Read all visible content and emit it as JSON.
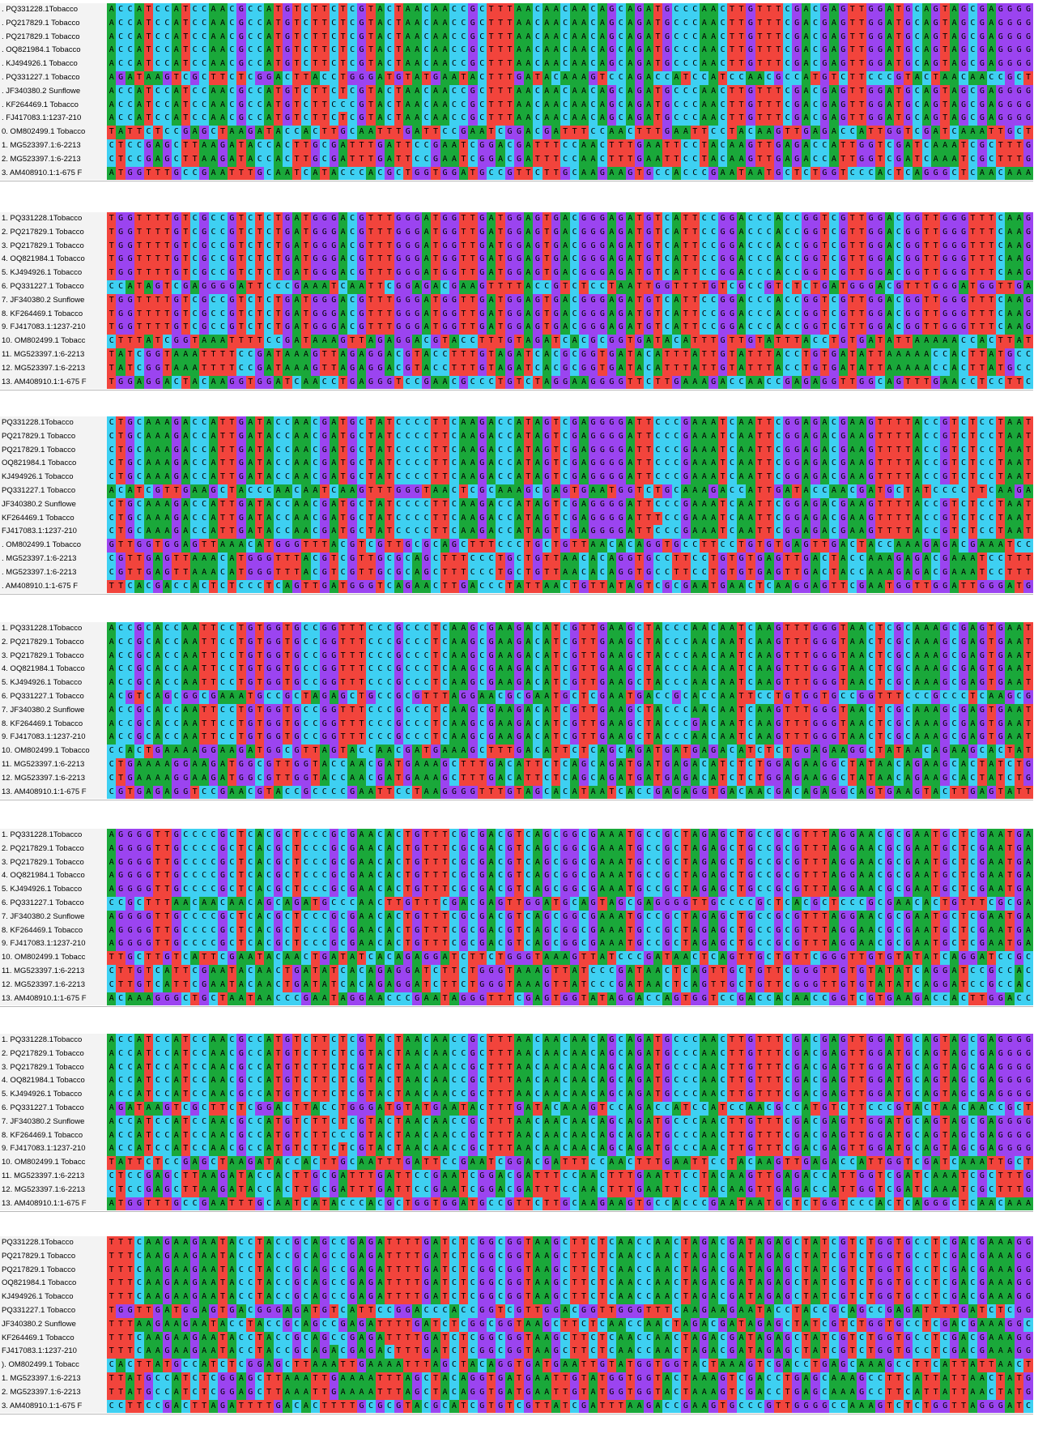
{
  "nucleotide_colors": {
    "A": "#1aa83a",
    "C": "#3ed0f2",
    "G": "#9b44f0",
    "T": "#f2443c"
  },
  "blocks": [
    {
      "labels": [
        ". PQ331228.1Tobacco",
        ". PQ217829.1 Tobacco",
        ". PQ217829.1 Tobacco",
        ". OQ821984.1 Tobacco",
        ". KJ494926.1 Tobacco",
        ". PQ331227.1 Tobacco",
        ". JF340380.2 Sunflowe",
        ". KF264469.1 Tobacco",
        ". FJ417083.1:1237-210",
        "0. OM802499.1 Tobacco",
        "1. MG523397.1:6-2213",
        "2. MG523397.1:6-2213",
        "3. AM408910.1:1-675 F"
      ],
      "sequences": [
        "ACCATCCATCCAACGCCATGTCTTCTCGTACTAACAACCGCTTTAACAACAACAGCAGATGCCCAACTTGTTTCGACGAGTTGGATGCAGTAGCGAGGGGTTG",
        "ACCATCCATCCAACGCCATGTCTTCTCGTACTAACAACCGCTTTAACAACAACAGCAGATGCCCAACTTGTTTCGACGAGTTGGATGCAGTAGCGAGGGGTTG",
        "ACCATCCATCCAACGCCATGTCTTCTCGTACTAACAACCGCTTTAACAACAACAGCAGATGCCCAACTTGTTTCGACGAGTTGGATGCAGTAGCGAGGGGTTG",
        "ACCATCCATCCAACGCCATGTCTTCTCGTACTAACAACCGCTTTAACAACAACAGCAGATGCCCAACTTGTTTCGACGAGTTGGATGCAGTAGCGAGGGGTTG",
        "ACCATCCATCCAACGCCATGTCTTCTCGTACTAACAACCGCTTTAACAACAACAGCAGATGCCCAACTTGTTTCGACGAGTTGGATGCAGTAGCGAGGGGTTG",
        "AGATAAGTCGCTTCTCGGACTTACCTGGGATGTATGAATACTTTGATACAAAGTCCAGACCATCCATCCAACGCCATGTCTTCCCGTACTAACAACCGCTTTA",
        "ACCATCCATCCAACGCCATGTCTTCTCGTACTAACAACCGCTTTAACAACAACAGCAGATGCCCAACTTGTTTCGACGAGTTGGATGCAGTAGCGAGGGGTTG",
        "ACCATCCATCCAACGCCATGTCTTCCCGTACTAACAACCGCTTTAACAACAACAGCAGATGCCCAACTTGTTTCGACGAGTTGGATGCAGTAGCGAGGGGTTG",
        "ACCATCCATCCAACGCCATGTCTTCTCGTACTAACAACCGCTTTAACAACAACAGCAGATGCCCAACTTGTTTCGACGAGTTGGATGCAGTAGCGAGGGGTTG",
        "TATTCTCCGAGCTAAGATACCACTTGCAATTTGATTCCGAATCGGACGATTTCCAACTTTGAATTCCTACAAGTTGAGACCATTGGTCGATCAAATTGCTTGT",
        "CTCCGAGCTTAAGATACCACTTGCGATTTGATTCCGAATCGGACGATTTCCAACTTTGAATTCCTACAAGTTGAGACCATTGGTCGATCAAATCGCTTTGTCAT",
        "CTCCGAGCTTAAGATACCACTTGCGATTTGATTCCGAATCGGACGATTTCCAACTTTGAATTCCTACAAGTTGAGACCATTGGTCGATCAAATCGCTTTGTCAT",
        "ATGGTTTGCCGAATTTGCAATCATACCCACGCTGGTGGATGCCGTTCTTGCAAGAAGTGCCACCCGAATAATGCTCTGGTCCCACTCAGGGCTCAACAAAGGG"
      ]
    },
    {
      "labels": [
        "1. PQ331228.1Tobacco",
        "2. PQ217829.1 Tobacco",
        "3. PQ217829.1 Tobacco",
        "4. OQ821984.1 Tobacco",
        "5. KJ494926.1 Tobacco",
        "6. PQ331227.1 Tobacco",
        "7. JF340380.2 Sunflowe",
        "8. KF264469.1 Tobacco",
        "9. FJ417083.1:1237-210",
        "10. OM802499.1 Tobacc",
        "11. MG523397.1:6-2213",
        "12. MG523397.1:6-2213",
        "13. AM408910.1:1-675 F"
      ],
      "sequences": [
        "TGGTTTTGTCGCCGTCTCTGATGGGACGTTTGGGATGGTTGATGGAGTGACGGGAGATGTCATTCCGGACCCACCGGTCGTTGGACGGTTGGGTTTCAAGAAG",
        "TGGTTTTGTCGCCGTCTCTGATGGGACGTTTGGGATGGTTGATGGAGTGACGGGAGATGTCATTCCGGACCCACCGGTCGTTGGACGGTTGGGTTTCAAGAAG",
        "TGGTTTTGTCGCCGTCTCTGATGGGACGTTTGGGATGGTTGATGGAGTGACGGGAGATGTCATTCCGGACCCACCGGTCGTTGGACGGTTGGGTTTCAAGAAG",
        "TGGTTTTGTCGCCGTCTCTGATGGGACGTTTGGGATGGTTGATGGAGTGACGGGAGATGTCATTCCGGACCCACCGGTCGTTGGACGGTTGGGTTTCAAGAAG",
        "TGGTTTTGTCGCCGTCTCTGATGGGACGTTTGGGATGGTTGATGGAGTGACGGGAGATGTCATTCCGGACCCACCGGTCGTTGGACGGTTGGGTTTCAAGAAG",
        "CCATAGTCGAGGGGATTCCCGAAATCAATTCGGAGACGAAGTTTTACCGTCTCCTAATTGGTTTTGTCGCCGTCTCTGATGGGACGTTTGGGATGGTTGATGG",
        "TGGTTTTGTCGCCGTCTCTGATGGGACGTTTGGGATGGTTGATGGAGTGACGGGAGATGTCATTCCGGACCCACCGGTCGTTGGACGGTTGGGTTTCAAGAAG",
        "TGGTTTTGTCGCCGTCTCTGATGGGACGTTTGGGATGGTTGATGGAGTGACGGGAGATGTCATTCCGGACCCACCGGTCGTTGGACGGTTGGGTTTCAAGAAG",
        "TGGTTTTGTCGCCGTCTCTGATGGGACGTTTGGGATGGTTGATGGAGTGACGGGAGATGTCATTCCGGACCCACCGGTCGTTGGACGGTTGGGTTTCAAGAAG",
        "CTTTATCGGTAAATTTTCCGATAAAGTTAGAGGACGTACCTTTGTAGATCACGCGGTGATACATTTGTTGTATTTACCTGTGATATTAAAAACCACTTATGCATC",
        "TATCGGTAAATTTTCCGATAAAGTTAGAGGACGTACCTTTGTAGATCACGCGGTGATACATTTATTGTATTTACCTGTGATATTAAAAACCACTTATGCCATC",
        "TATCGGTAAATTTTCCGATAAAGTTAGAGGACGTACCTTTGTAGATCACGCGGTGATACATTTATTGTATTTACCTGTGATATTAAAAACCACTTATGCCATC",
        "TGGAGGACTACAAGGTGGATCAACCTGAGGGTCCGAACGCCCTGTCTAGGAAGGGGTTCTTGAAAGACCAACCGAGAGGTTGGCAGTTTGAACCTCCTTCCGA"
      ]
    },
    {
      "labels": [
        "PQ331228.1Tobacco",
        "PQ217829.1 Tobacco",
        "PQ217829.1 Tobacco",
        "OQ821984.1 Tobacco",
        "KJ494926.1 Tobacco",
        "PQ331227.1 Tobacco",
        "JF340380.2 Sunflowe",
        "KF264469.1 Tobacco",
        "FJ417083.1:1237-210",
        ". OM802499.1 Tobacco",
        ". MG523397.1:6-2213",
        ". MG523397.1:6-2213",
        ". AM408910.1:1-675 F"
      ],
      "sequences": [
        "CTGCAAAGACCATTGATACCAACGATGCTATCCCCTTCAAGACCATAGTCGAGGGGATTCCCGAAATCAATTCGGAGACGAAGTTTTACCGTCTCCTAATTGG",
        "CTGCAAAGACCATTGATACCAACGATGCTATCCCCTTCAAGACCATAGTCGAGGGGATTCCCGAAATCAATTCGGAGACGAAGTTTTACCGTCTCCTAATTGG",
        "CTGCAAAGACCATTGATACCAACGATGCTATCCCCTTCAAGACCATAGTCGAGGGGATTCCCGAAATCAATTCGGAGACGAAGTTTTACCGTCTCCTAATTGG",
        "CTGCAAAGACCATTGATACCAACGATGCTATCCCCTTCAAGACCATAGTCGAGGGGATTCCCGAAATCAATTCGGAGACGAAGTTTTACCGTCTCCTAATTGG",
        "CTGCAAAGACCATTGATACCAACGATGCTATCCCCTTCAAGACCATAGTCGAGGGGATTCCCGAAATCAATTCGGAGACGAAGTTTTACCGTCTCCTAATTGG",
        "ACATCGTTGAAGCTACCCAACAATCAAGTTTGGGTAACTCGCAAAGCGAGTGAATGGTCTGCAAAGACCATTGATACCAACGATGCTATCCCCTTCAAGACCA",
        "CTGCAAAGACCATTGATACCAACGATGCTATCCCCTTCAAGACCATAGTCGAGGGGATTCCCGAAATCAATTCGGAGACGAAGTTTTACCGTCTCCTAATTGG",
        "CTGCAAAGACCATTGATACCAACGATGCTATCCCCTTCAAGACCATAGTCGAGGGGATTTCCGAAATCAATTCGGAGACGAAGTTTTACCGTCTCCTAATTGG",
        "CTGCAAAGACCATTGATACCAACGATGCTATCCCCTTCAAGACCATAGTCGAGGGGATTCCCGAAATCAATTCGGAGACGAAGTTTTACCGTCTCCTAATTGG",
        "GTTGGTGGAGTTAAACATGGGTTTACGTCGTTGCGCAGCTTTCCCTGCTGTTAACACAGGTGCCTTCCTGTGTGAGTTGACTACCAAAGAGACGAAATCCTT",
        "CGTTGAGTTAAACATGGGTTTACGTCGTTGCGCAGCTTTCCCTGCTGTTAACACAGGTGCCTTCCTGTGTGAGTTGACTACCAAAGAGACGAAATCCTTTAT",
        "CGTTGAGTTAAACATGGGTTTACGTCGTTGCGCAGCTTTCCCTGCTGTTAACACAGGTGCCTTCCTGTGTGAGTTGACTACCAAAGAGACGAAATCCTTTAT",
        "TTCACGACCACTCTCCCTCAGTTGATGGGTCAGAACTTGACCCTATTAACTGTTATAGTCGCGAATGAACTCAAGGAGTTCGAATGGTTGGATTGGGATGGTGG"
      ]
    },
    {
      "labels": [
        "1. PQ331228.1Tobacco",
        "2. PQ217829.1 Tobacco",
        "3. PQ217829.1 Tobacco",
        "4. OQ821984.1 Tobacco",
        "5. KJ494926.1 Tobacco",
        "6. PQ331227.1 Tobacco",
        "7. JF340380.2 Sunflowe",
        "8. KF264469.1 Tobacco",
        "9. FJ417083.1:1237-210",
        "10. OM802499.1 Tobacco",
        "11. MG523397.1:6-2213",
        "12. MG523397.1:6-2213",
        "13. AM408910.1:1-675 F"
      ],
      "sequences": [
        "ACCGCACCAATTCCTGTGGTGCCGGTTTCCCGCCCTCAAGCGAAGACATCGTTGAAGCTACCCAACAATCAAGTTTGGGTAACTCGCAAAGCGAGTGAATGGT",
        "ACCGCACCAATTCCTGTGGTGCCGGTTTCCCGCCCTCAAGCGAAGACATCGTTGAAGCTACCCAACAATCAAGTTTGGGTAACTCGCAAAGCGAGTGAATGGT",
        "ACCGCACCAATTCCTGTGGTGCCGGTTTCCCGCCCTCAAGCGAAGACATCGTTGAAGCTACCCAACAATCAAGTTTGGGTAACTCGCAAAGCGAGTGAATGGT",
        "ACCGCACCAATTCCTGTGGTGCCGGTTTCCCGCCCTCAAGCGAAGACATCGTTGAAGCTACCCAACAATCAAGTTTGGGTAACTCGCAAAGCGAGTGAATGGT",
        "ACCGCACCAATTCCTGTGGTGCCGGTTTCCCGCCCTCAAGCGAAGACATCGTTGAAGCTACCCAACAATCAAGTTTGGGTAACTCGCAAAGCGAGTGAATGGT",
        "ACGTCAGCGGCGAAATGCCGCTAGAGCTGCCGCGTTTAGGAACGCGAATGCTCGAATGACCGCACCAATTCCTGTGGTGCCGGTTTCCCGCCCTCAAGCGAAG",
        "ACCGCACCAATTCCTGTGGTGCCGGTTTCCCGCCCTCAAGCGAAGACATCGTTGAAGCTACCCAACAATCAAGTTTGGGTAACTCGCAAAGCGAGTGAATGGT",
        "ACCGCACCAATTCCTGTGGTGCCGGTTTCCCGCCCTCAAGCGAAGACATCGTTGAAGCTACCCGACAATCAAGTTTGGGTAACTCGCAAAGCGAGTGAATGGT",
        "ACCGCACCAATTCCTGTGGTGCCGGTTTCCCGCCCTCAAGCGAAGACATCGTTGAAGCTACCCAACAATCAAGTTTGGGTAACTCGCAAAGCGAGTGAATGGT",
        "CCACTGAAAAGGAAGATGGCGTTAGTACCAACGATGAAAGCTTTGACATTCTCAGCAGATGATGAGACATCTCTGGAGAAGGCTATAACAGAAGCACTATCTG",
        "CTGAAAAGGAAGATGGCGTTGGTACCAACGATGAAAGCTTTGACATTCTCAGCAGATGATGAGACATCTCTGGAGAAGGCTATAACAGAAGCACTATCTGGTT",
        "CTGAAAAGGAAGATGGCGTTGGTACCAACGATGAAAGCTTTGACATTCTCAGCAGATGATGAGACATCTCTGGAGAAGGCTATAACAGAAGCACTATCTGGTT",
        "CGTGAGAGGTCCGAACGTACCGCCCCGAATTCCTAAGGGGTTTGTAGCACATAATCACCGAGAGGTGACAACGACAGAGGCAGTGAAGTACTTGAGTATTGAC"
      ]
    },
    {
      "labels": [
        "1. PQ331228.1Tobacco",
        "2. PQ217829.1 Tobacco",
        "3. PQ217829.1 Tobacco",
        "4. OQ821984.1 Tobacco",
        "5. KJ494926.1 Tobacco",
        "6. PQ331227.1 Tobacco",
        "7. JF340380.2 Sunflowe",
        "8. KF264469.1 Tobacco",
        "9. FJ417083.1:1237-210",
        "10. OM802499.1 Tobacc",
        "11. MG523397.1:6-2213",
        "12. MG523397.1:6-2213",
        "13. AM408910.1:1-675 F"
      ],
      "sequences": [
        "AGGGGTTGCCCCGCTCACGCTCCCGCGAACACTGTTTCGCGACGTCAGCGGCGAAATGCCGCTAGAGCTGCCGCGTTTAGGAACGCGAATGCTCGAATGACCG",
        "AGGGGTTGCCCCGCTCACGCTCCCGCGAACACTGTTTCGCGACGTCAGCGGCGAAATGCCGCTAGAGCTGCCGCGTTTAGGAACGCGAATGCTCGAATGACCG",
        "AGGGGTTGCCCCGCTCACGCTCCCGCGAACACTGTTTCGCGACGTCAGCGGCGAAATGCCGCTAGAGCTGCCGCGTTTAGGAACGCGAATGCTCGAATGACCG",
        "AGGGGTTGCCCCGCTCACGCTCCCGCGAACACTGTTTCGCGACGTCAGCGGCGAAATGCCGCTAGAGCTGCCGCGTTTAGGAACGCGAATGCTCGAATGACCG",
        "AGGGGTTGCCCCGCTCACGCTCCCGCGAACACTGTTTCGCGACGTCAGCGGCGAAATGCCGCTAGAGCTGCCGCGTTTAGGAACGCGAATGCTCGAATGACCG",
        "CCGCTTTAACAACAACAGCAGATGCCCAACTTGTTTCGACGAGTTGGATGCAGTAGCGAGGGGTTGCCCCGCTCACGCTCCCGCGAACACTGTTTCGCGACGT",
        "AGGGGTTGCCCCGCTCACGCTCCCGCGAACACTGTTTCGCGACGTCAGCGGCGAAATGCCGCTAGAGCTGCCGCGTTTAGGAACGCGAATGCTCGAATGACCG",
        "AGGGGTTGCCCCGCTCACGCTCCCGCGAACACTGTTTCGCGACGTCAGCGGCGAAATGCCGCTAGAGCTGCCGCGTTTAGGAACGCGAATGCTCGAATGACCG",
        "AGGGGTTGCCCCGCTCACGCTCCCGCGAACACTGTTTCGCGACGTCAGCGGCGAAATGCCGCTAGAGCTGCCGCGTTTAGGAACGCGAATGCTCGAATGACCG",
        "TTGCTTGTCATTCGAATACAACTGATATCACAGAGGATCTTCTGGGTAAAGTTATCCCGATAACTCAGTTGCTGTTCGGGTTGTGTATATCAGGATCCGCCAC",
        "CTTGTCATTCGAATACAACTGATATCACAGAGGATCTTCTGGGTAAAGTTATCCCGATAACTCAGTTGCTGTTCGGGTTGTGTATATCAGGATCCGCCACTTG",
        "CTTGTCATTCGAATACAACTGATATCACAGAGGATCTTCTGGGTAAAGTTATCCCGATAACTCAGTTGCTGTTCGGGTTGTGTATATCAGGATCCGCCACTTG",
        "ACAAAGGGCTGCTAATAACCCGAATAGGAACCCGAATAGGGTTTCGAGTGGTATAGGACCAGTGGTCCGACCACAACCGGTCGTGAAGACCACTTGGACCGTG"
      ]
    },
    {
      "labels": [
        "1. PQ331228.1Tobacco",
        "2. PQ217829.1 Tobacco",
        "3. PQ217829.1 Tobacco",
        "4. OQ821984.1 Tobacco",
        "5. KJ494926.1 Tobacco",
        "6. PQ331227.1 Tobacco",
        "7. JF340380.2 Sunflowe",
        "8. KF264469.1 Tobacco",
        "9. FJ417083.1:1237-210",
        "10. OM802499.1 Tobacc",
        "11. MG523397.1:6-2213",
        "12. MG523397.1:6-2213",
        "13. AM408910.1:1-675 F"
      ],
      "sequences": [
        "ACCATCCATCCAACGCCATGTCTTCTCGTACTAACAACCGCTTTAACAACAACAGCAGATGCCCAACTTGTTTCGACGAGTTGGATGCAGTAGCGAGGGGTTG",
        "ACCATCCATCCAACGCCATGTCTTCTCGTACTAACAACCGCTTTAACAACAACAGCAGATGCCCAACTTGTTTCGACGAGTTGGATGCAGTAGCGAGGGGTTG",
        "ACCATCCATCCAACGCCATGTCTTCTCGTACTAACAACCGCTTTAACAACAACAGCAGATGCCCAACTTGTTTCGACGAGTTGGATGCAGTAGCGAGGGGTTG",
        "ACCATCCATCCAACGCCATGTCTTCTCGTACTAACAACCGCTTTAACAACAACAGCAGATGCCCAACTTGTTTCGACGAGTTGGATGCAGTAGCGAGGGGTTG",
        "ACCATCCATCCAACGCCATGTCTTCTCGTACTAACAACCGCTTTAACAACAACAGCAGATGCCCAACTTGTTTCGACGAGTTGGATGCAGTAGCGAGGGGTTG",
        "AGATAAGTCGCTTCTCGGACTTACCTGGGATGTATGAATACTTTGATACAAAGTCCAGACCATCCATCCAACGCCATGTCTTCCCGTACTAACAACCGCTTTA",
        "ACCATCCATCCAACGCCATGTCTTCTCGTACTAACAACCGCTTTAACAACAACAGCAGATGCCCAACTTGTTTCGACGAGTTGGATGCAGTAGCGAGGGGTTG",
        "ACCATCCATCCAACGCCATGTCTTCCCGTACTAACAACCGCTTTAACAACAACAGCAGATGCCCAACTTGTTTCGACGAGTTGGATGCAGTAGCGAGGGGTTG",
        "ACCATCCATCCAACGCCATGTCTTCTCGTACTAACAACCGCTTTAACAACAACAGCAGATGCCCAACTTGTTTCGACGAGTTGGATGCAGTAGCGAGGGGTTG",
        "TATTCTCCGAGCTAAGATACCACTTGCAATTTGATTCCGAATCGGACGATTTCCAACTTTGAATTCCTACAAGTTGAGACCATTGGTCGATCAAATTGCTTGT",
        "CTCCGAGCTTAAGATACCACTTGCGATTTGATTCCGAATCGGACGATTTCCAACTTTGAATTCCTACAAGTTGAGACCATTGGTCGATCAAATCGCTTTGTCAT",
        "CTCCGAGCTTAAGATACCACTTGCGATTTGATTCCGAATCGGACGATTTCCAACTTTGAATTCCTACAAGTTGAGACCATTGGTCGATCAAATCGCTTTGTCAT",
        "ATGGTTTGCCGAATTTGCAATCATACCCACGCTGGTGGATGCCGTTCTTGCAAGAAGTGCCACCCGAATAATGCTCTGGTCCCACTCAGGGCTCAACAAAGGG"
      ]
    },
    {
      "labels": [
        "PQ331228.1Tobacco",
        "PQ217829.1 Tobacco",
        "PQ217829.1 Tobacco",
        "OQ821984.1 Tobacco",
        "KJ494926.1 Tobacco",
        "PQ331227.1 Tobacco",
        "JF340380.2 Sunflowe",
        "KF264469.1 Tobacco",
        "FJ417083.1:1237-210",
        "). OM802499.1 Tobacc",
        "1. MG523397.1:6-2213",
        "2. MG523397.1:6-2213",
        "3. AM408910.1:1-675 F"
      ],
      "sequences": [
        "TTTCAAGAAGAATACCTACCGCAGCCGAGATTTTGATCTCGGCGGTAAGCTTCTCAACCAACTAGACGATAGAGCTATCGTCTGGTGCCTCGACGAAAGGCGT",
        "TTTCAAGAAGAATACCTACCGCAGCCGAGATTTTGATCTCGGCGGTAAGCTTCTCAACCAACTAGACGATAGAGCTATCGTCTGGTGCCTCGACGAAAGGCGT",
        "TTTCAAGAAGAATACCTACCGCAGCCGAGATTTTGATCTCGGCGGTAAGCTTCTCAACCAACTAGACGATAGAGCTATCGTCTGGTGCCTCGACGAAAGGCGT",
        "TTTCAAGAAGAATACCTACCGCAGCCGAGATTTTGATCTCGGCGGTAAGCTTCTCAACCAACTAGACGATAGAGCTATCGTCTGGTGCCTCGACGAAAGGCGT",
        "TTTCAAGAAGAATACCTACCGCAGCCGAGATTTTGATCTCGGCGGTAAGCTTCTCAACCAACTAGACGATAGAGCTATCGTCTGGTGCCTCGACGAAAGGCGT",
        "TGGTTGATGGAGTGACGGGAGATGTCATTCCGGACCCACCGGTCGTTGGACGGTTGGGTTTCAAGAAGAATACCTACCGCAGCCGAGATTTTGATCTCGGCGG",
        "TTTAAGAAGAATACCTACCGCAGCCGAGATTTTGATCTCGGCGGTAAGCTTCTCAACCAACTAGACGATAGAGCTATCGTCTGGTGCCTCGACGAAAGGCGTT",
        "TTTCAAGAAGAATACCTACCGCAGCCGAGATTTTGATCTCGGCGGTAAGCTTCTCAACCAACTAGACGATAGAGCTATCGTCTGGTGCCTCGACGAAAGGCGT",
        "TTTCAAGAAGAATACCTACCGCAGACGAGACTTTGATCTCGGCGGTAAGCTTCTCAACCAACTAGACGATAGAGCTATCGTCTGGTGCCTCGACGAAAGGCGT",
        "CACTTATGCCATCTCGGAGCTTAAATTGAAAATTTAGCTACAGGTGATGAATTGTATGGTGGTACTAAAGTCGACCTGAGCAAAGCCTTCATTATTAACTATG",
        "TTATGCCATCTCGGAGCTTAAATTGAAAATTTAGCTACAGGTGATGAATTGTATGGTGGTACTAAAGTCGACCTGAGCAAAGCCTTCATTATTAACTATGACT",
        "TTATGCCATCTCGGAGCTTAAATTGAAAATTTAGCTACAGGTGATGAATTGTATGGTGGTACTAAAGTCGACCTGAGCAAAGCCTTCATTATTAACTATGACT",
        "CCTTCCGACTTAGATTTTGACACTTTTGCGCGTACGCATCGTGTCGTTATCGATTTAAGACCGAAGTGCCCGTTGGGGCCAAAGTCTCTGGTTAGGGATCGT"
      ]
    }
  ]
}
